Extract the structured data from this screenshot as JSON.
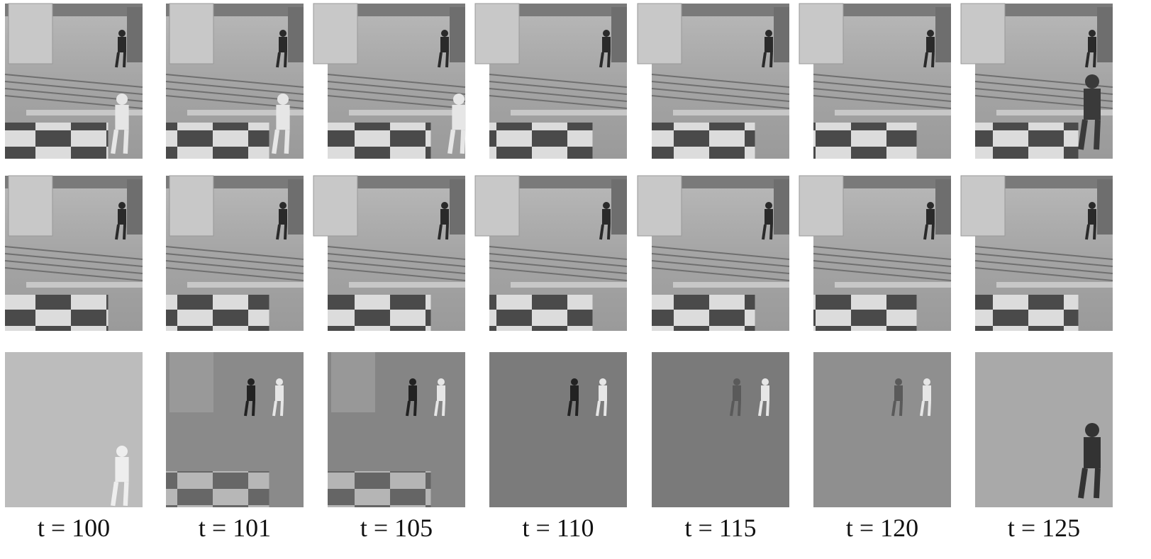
{
  "captions": [
    "t = 100",
    "t = 101",
    "t = 105",
    "t = 110",
    "t = 115",
    "t = 120",
    "t = 125"
  ]
}
